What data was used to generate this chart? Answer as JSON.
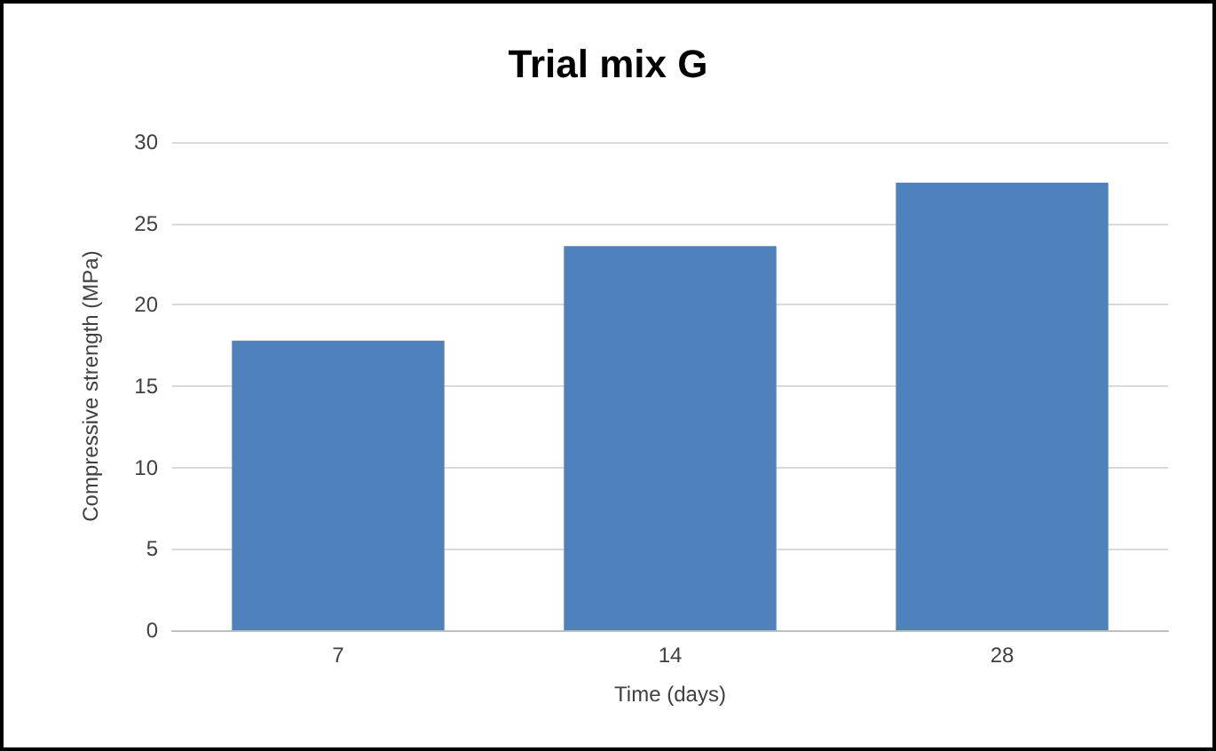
{
  "chart_data": {
    "type": "bar",
    "title": "Trial mix G",
    "xlabel": "Time (days)",
    "ylabel": "Compressive strength (MPa)",
    "categories": [
      "7",
      "14",
      "28"
    ],
    "values": [
      17.8,
      23.6,
      27.5
    ],
    "color": "#4f81bd",
    "ylim": [
      0,
      30
    ],
    "yticks": [
      0,
      5,
      10,
      15,
      20,
      25,
      30
    ],
    "grid": "y"
  }
}
